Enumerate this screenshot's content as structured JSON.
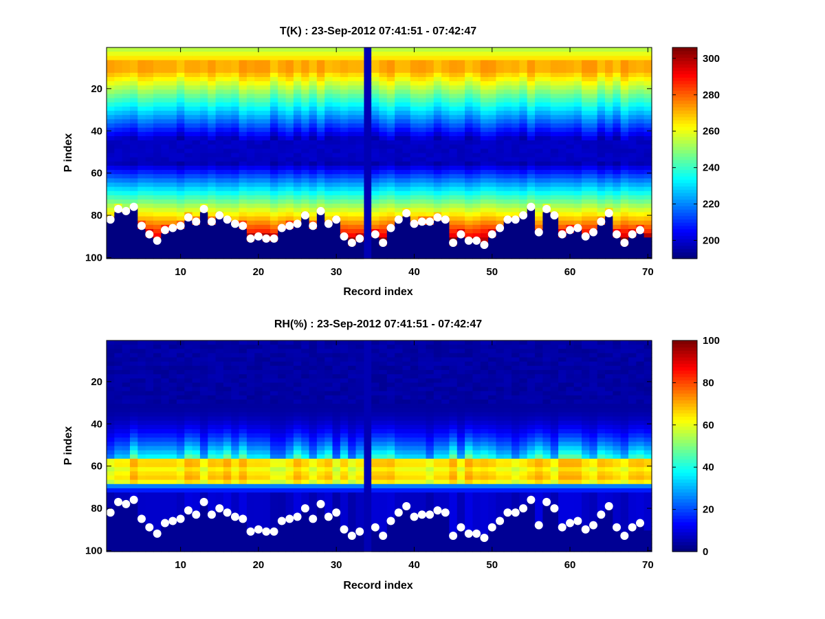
{
  "chart_data": [
    {
      "type": "heatmap",
      "title": "T(K) : 23-Sep-2012 07:41:51 - 07:42:47",
      "xlabel": "Record index",
      "ylabel": "P index",
      "xlim": [
        0.5,
        70.5
      ],
      "ylim": [
        1,
        100
      ],
      "y_reversed": true,
      "x_ticks": [
        "10",
        "20",
        "30",
        "40",
        "50",
        "60",
        "70"
      ],
      "y_ticks": [
        "20",
        "40",
        "60",
        "80",
        "100"
      ],
      "colorbar": {
        "colormap": "jet",
        "range": [
          190,
          306
        ],
        "ticks": [
          "200",
          "220",
          "240",
          "260",
          "280",
          "300"
        ]
      },
      "missing_record": 34,
      "markers": {
        "color": "#ffffff",
        "description": "surface level (white dots)",
        "x": [
          1,
          2,
          3,
          4,
          5,
          6,
          7,
          8,
          9,
          10,
          11,
          12,
          13,
          14,
          15,
          16,
          17,
          18,
          19,
          20,
          21,
          22,
          23,
          24,
          25,
          26,
          27,
          28,
          29,
          30,
          31,
          32,
          33,
          35,
          36,
          37,
          38,
          39,
          40,
          41,
          42,
          43,
          44,
          45,
          46,
          47,
          48,
          49,
          50,
          51,
          52,
          53,
          54,
          55,
          56,
          57,
          58,
          59,
          60,
          61,
          62,
          63,
          64,
          65,
          66,
          67,
          68,
          69
        ],
        "y": [
          82,
          77,
          78,
          76,
          85,
          89,
          92,
          87,
          86,
          85,
          81,
          83,
          77,
          83,
          80,
          82,
          84,
          85,
          91,
          90,
          91,
          91,
          86,
          85,
          84,
          80,
          85,
          78,
          84,
          82,
          90,
          93,
          91,
          89,
          93,
          86,
          82,
          79,
          84,
          83,
          83,
          81,
          82,
          93,
          89,
          92,
          92,
          94,
          89,
          86,
          82,
          82,
          80,
          76,
          88,
          77,
          80,
          89,
          87,
          86,
          90,
          88,
          83,
          79,
          89,
          93,
          89,
          87
        ]
      }
    },
    {
      "type": "heatmap",
      "title": "RH(%) : 23-Sep-2012 07:41:51 - 07:42:47",
      "xlabel": "Record index",
      "ylabel": "P index",
      "xlim": [
        0.5,
        70.5
      ],
      "ylim": [
        1,
        100
      ],
      "y_reversed": true,
      "x_ticks": [
        "10",
        "20",
        "30",
        "40",
        "50",
        "60",
        "70"
      ],
      "y_ticks": [
        "20",
        "40",
        "60",
        "80",
        "100"
      ],
      "colorbar": {
        "colormap": "jet",
        "range": [
          0,
          100
        ],
        "ticks": [
          "0",
          "20",
          "40",
          "60",
          "80",
          "100"
        ]
      },
      "missing_record": 34,
      "markers": {
        "color": "#ffffff",
        "description": "surface level (white dots)",
        "x": [
          1,
          2,
          3,
          4,
          5,
          6,
          7,
          8,
          9,
          10,
          11,
          12,
          13,
          14,
          15,
          16,
          17,
          18,
          19,
          20,
          21,
          22,
          23,
          24,
          25,
          26,
          27,
          28,
          29,
          30,
          31,
          32,
          33,
          35,
          36,
          37,
          38,
          39,
          40,
          41,
          42,
          43,
          44,
          45,
          46,
          47,
          48,
          49,
          50,
          51,
          52,
          53,
          54,
          55,
          56,
          57,
          58,
          59,
          60,
          61,
          62,
          63,
          64,
          65,
          66,
          67,
          68,
          69
        ],
        "y": [
          82,
          77,
          78,
          76,
          85,
          89,
          92,
          87,
          86,
          85,
          81,
          83,
          77,
          83,
          80,
          82,
          84,
          85,
          91,
          90,
          91,
          91,
          86,
          85,
          84,
          80,
          85,
          78,
          84,
          82,
          90,
          93,
          91,
          89,
          93,
          86,
          82,
          79,
          84,
          83,
          83,
          81,
          82,
          93,
          89,
          92,
          92,
          94,
          89,
          86,
          82,
          82,
          80,
          76,
          88,
          77,
          80,
          89,
          87,
          86,
          90,
          88,
          83,
          79,
          89,
          93,
          89,
          87
        ]
      }
    }
  ]
}
